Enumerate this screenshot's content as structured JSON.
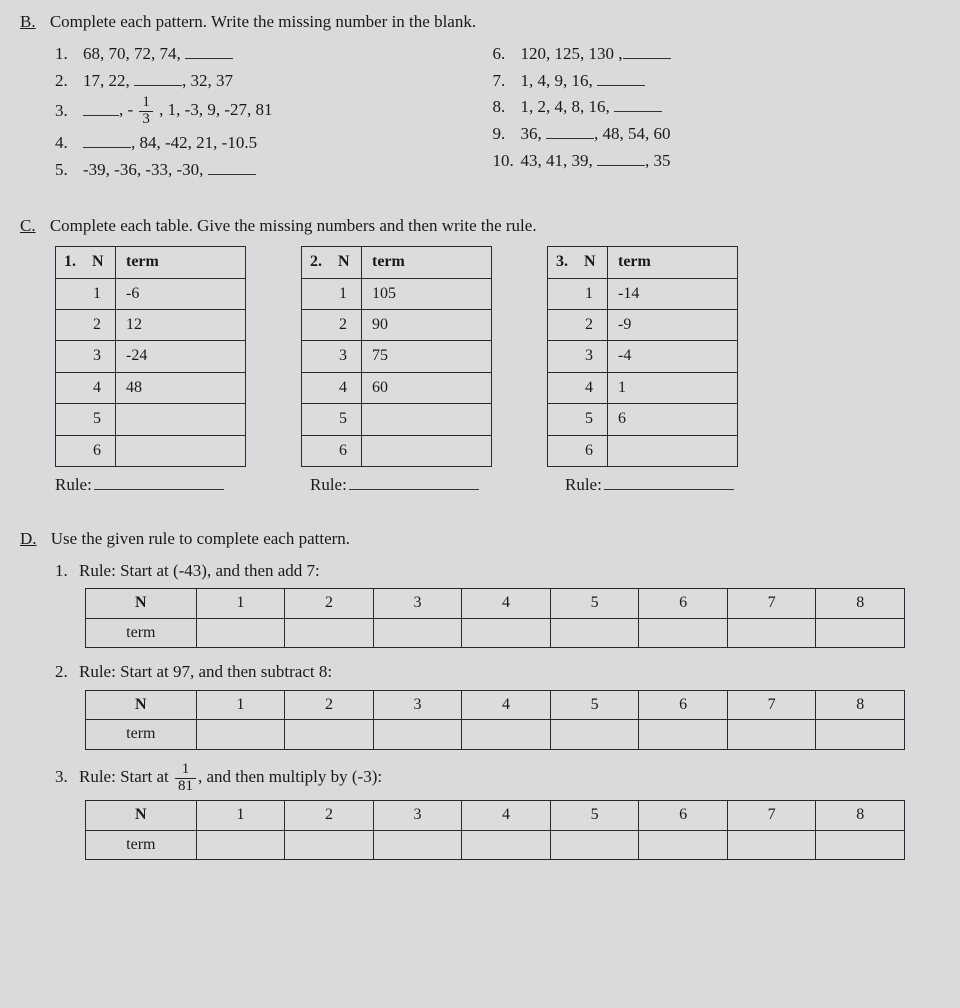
{
  "sectionB": {
    "label": "B.",
    "instruction": "Complete each pattern. Write the missing number in the blank.",
    "left": [
      {
        "n": "1.",
        "pre": "68, 70, 72, 74, ",
        "blank": true,
        "post": ""
      },
      {
        "n": "2.",
        "pre": "17, 22, ",
        "blank": true,
        "post": ", 32, 37"
      },
      {
        "n": "3.",
        "pre": "",
        "blank": true,
        "post": ", ",
        "useFrac": true,
        "fracSign": "-",
        "fracNum": "1",
        "fracDen": "3",
        "tail": " , 1, -3, 9, -27, 81"
      },
      {
        "n": "4.",
        "pre": "",
        "blank": true,
        "post": ", 84, -42, 21, -10.5"
      },
      {
        "n": "5.",
        "pre": "-39, -36, -33, -30, ",
        "blank": true,
        "post": ""
      }
    ],
    "right": [
      {
        "n": "6.",
        "pre": "120, 125, 130 ,",
        "blank": true,
        "post": ""
      },
      {
        "n": "7.",
        "pre": "1, 4, 9, 16, ",
        "blank": true,
        "post": ""
      },
      {
        "n": "8.",
        "pre": "1, 2, 4, 8, 16, ",
        "blank": true,
        "post": ""
      },
      {
        "n": "9.",
        "pre": "36, ",
        "blank": true,
        "post": ", 48, 54, 60"
      },
      {
        "n": "10.",
        "pre": "43, 41, 39, ",
        "blank": true,
        "post": ", 35"
      }
    ]
  },
  "sectionC": {
    "label": "C.",
    "instruction": "Complete each table. Give the missing numbers and then write the rule.",
    "headers": {
      "n": "N",
      "term": "term"
    },
    "ruleLabel": "Rule:",
    "tables": [
      {
        "num": "1.",
        "rows": [
          [
            "1",
            "-6"
          ],
          [
            "2",
            "12"
          ],
          [
            "3",
            "-24"
          ],
          [
            "4",
            "48"
          ],
          [
            "5",
            ""
          ],
          [
            "6",
            ""
          ]
        ]
      },
      {
        "num": "2.",
        "rows": [
          [
            "1",
            "105"
          ],
          [
            "2",
            "90"
          ],
          [
            "3",
            "75"
          ],
          [
            "4",
            "60"
          ],
          [
            "5",
            ""
          ],
          [
            "6",
            ""
          ]
        ]
      },
      {
        "num": "3.",
        "rows": [
          [
            "1",
            "-14"
          ],
          [
            "2",
            "-9"
          ],
          [
            "3",
            "-4"
          ],
          [
            "4",
            "1"
          ],
          [
            "5",
            "6"
          ],
          [
            "6",
            ""
          ]
        ]
      }
    ]
  },
  "sectionD": {
    "label": "D.",
    "instruction": "Use the given rule to complete each pattern.",
    "nLabel": "N",
    "termLabel": "term",
    "cols": [
      "1",
      "2",
      "3",
      "4",
      "5",
      "6",
      "7",
      "8"
    ],
    "items": [
      {
        "n": "1.",
        "rule": "Rule: Start at (-43), and then add 7:"
      },
      {
        "n": "2.",
        "rule": "Rule: Start at 97, and then subtract 8:"
      },
      {
        "n": "3.",
        "ruleIsFrac": true,
        "rulePre": "Rule: Start at ",
        "fracNum": "1",
        "fracDen": "81",
        "rulePost": ", and then multiply by (-3):"
      }
    ]
  }
}
